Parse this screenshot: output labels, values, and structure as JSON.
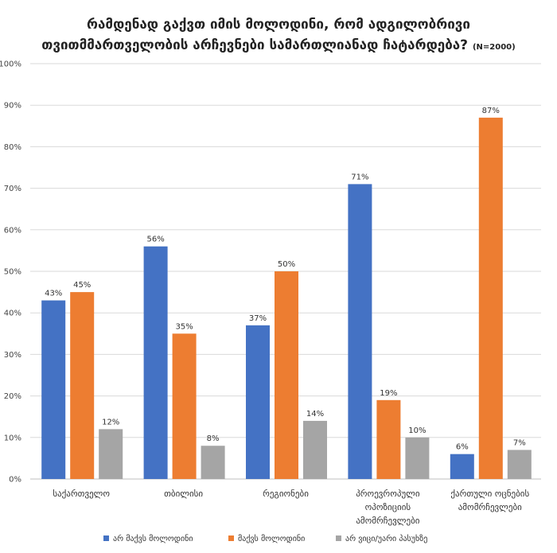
{
  "chart_data": {
    "type": "bar",
    "title_line1": "რამდენად გაქვთ იმის მოლოდინი, რომ ადგილობრივი",
    "title_line2": "თვითმმართველობის არჩევნები სამართლიანად ჩატარდება?",
    "title_n": "(N=2000)",
    "xlabel": "",
    "ylabel": "",
    "ylim": [
      0,
      100
    ],
    "yticks": [
      "0%",
      "10%",
      "20%",
      "30%",
      "40%",
      "50%",
      "60%",
      "70%",
      "80%",
      "90%",
      "100%"
    ],
    "grid": true,
    "legend_position": "bottom",
    "categories": [
      [
        "საქართველო"
      ],
      [
        "თბილისი"
      ],
      [
        "რეგიონები"
      ],
      [
        "პროევროპული",
        "ოპოზიციის",
        "ამომრჩევლები"
      ],
      [
        "ქართული ოცნების",
        "ამომრჩევლები"
      ]
    ],
    "series": [
      {
        "name": "არ მაქვს მოლოდინი",
        "color": "#4472C4",
        "values": [
          43,
          56,
          37,
          71,
          6
        ],
        "labels": [
          "43%",
          "56%",
          "37%",
          "71%",
          "6%"
        ]
      },
      {
        "name": "მაქვს მოლოდინი",
        "color": "#ED7D31",
        "values": [
          45,
          35,
          50,
          19,
          87
        ],
        "labels": [
          "45%",
          "35%",
          "50%",
          "19%",
          "87%"
        ]
      },
      {
        "name": "არ ვიცი/უარი პასუხზე",
        "color": "#A5A5A5",
        "values": [
          12,
          8,
          14,
          10,
          7
        ],
        "labels": [
          "12%",
          "8%",
          "14%",
          "10%",
          "7%"
        ]
      }
    ]
  }
}
